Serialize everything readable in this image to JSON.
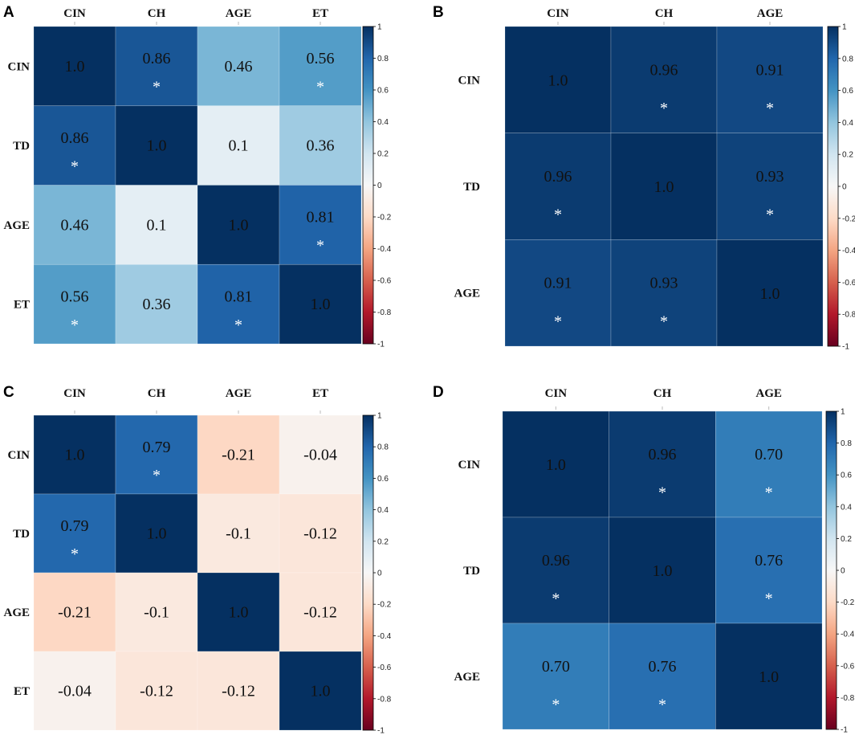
{
  "colorscale": {
    "neg": "#67001f",
    "mid": "#f7f7f7",
    "pos": "#053061"
  },
  "chart_data": [
    {
      "panel": "A",
      "type": "heatmap",
      "columns": [
        "CIN",
        "CH",
        "AGE",
        "ET"
      ],
      "rows": [
        "CIN",
        "TD",
        "AGE",
        "ET"
      ],
      "values": [
        [
          1.0,
          0.86,
          0.46,
          0.56
        ],
        [
          0.86,
          1.0,
          0.1,
          0.36
        ],
        [
          0.46,
          0.1,
          1.0,
          0.81
        ],
        [
          0.56,
          0.36,
          0.81,
          1.0
        ]
      ],
      "labels": [
        [
          "1.0",
          "0.86",
          "0.46",
          "0.56"
        ],
        [
          "0.86",
          "1.0",
          "0.1",
          "0.36"
        ],
        [
          "0.46",
          "0.1",
          "1.0",
          "0.81"
        ],
        [
          "0.56",
          "0.36",
          "0.81",
          "1.0"
        ]
      ],
      "significant": [
        [
          false,
          true,
          false,
          true
        ],
        [
          true,
          false,
          false,
          false
        ],
        [
          false,
          false,
          false,
          true
        ],
        [
          true,
          false,
          true,
          false
        ]
      ],
      "colorbar": {
        "ticks": [
          "1",
          "0.8",
          "0.6",
          "0.4",
          "0.2",
          "0",
          "-0.2",
          "-0.4",
          "-0.6",
          "-0.8",
          "-1"
        ],
        "range": [
          -1,
          1
        ]
      }
    },
    {
      "panel": "B",
      "type": "heatmap",
      "columns": [
        "CIN",
        "CH",
        "AGE"
      ],
      "rows": [
        "CIN",
        "TD",
        "AGE"
      ],
      "values": [
        [
          1.0,
          0.96,
          0.91
        ],
        [
          0.96,
          1.0,
          0.93
        ],
        [
          0.91,
          0.93,
          1.0
        ]
      ],
      "labels": [
        [
          "1.0",
          "0.96",
          "0.91"
        ],
        [
          "0.96",
          "1.0",
          "0.93"
        ],
        [
          "0.91",
          "0.93",
          "1.0"
        ]
      ],
      "significant": [
        [
          false,
          true,
          true
        ],
        [
          true,
          false,
          true
        ],
        [
          true,
          true,
          false
        ]
      ],
      "colorbar": {
        "ticks": [
          "1",
          "0.8",
          "0.6",
          "0.4",
          "0.2",
          "0",
          "-0.2",
          "-0.4",
          "-0.6",
          "-0.8",
          "-1"
        ],
        "range": [
          -1,
          1
        ]
      }
    },
    {
      "panel": "C",
      "type": "heatmap",
      "columns": [
        "CIN",
        "CH",
        "AGE",
        "ET"
      ],
      "rows": [
        "CIN",
        "TD",
        "AGE",
        "ET"
      ],
      "values": [
        [
          1.0,
          0.79,
          -0.21,
          -0.04
        ],
        [
          0.79,
          1.0,
          -0.1,
          -0.12
        ],
        [
          -0.21,
          -0.1,
          1.0,
          -0.12
        ],
        [
          -0.04,
          -0.12,
          -0.12,
          1.0
        ]
      ],
      "labels": [
        [
          "1.0",
          "0.79",
          "-0.21",
          "-0.04"
        ],
        [
          "0.79",
          "1.0",
          "-0.1",
          "-0.12"
        ],
        [
          "-0.21",
          "-0.1",
          "1.0",
          "-0.12"
        ],
        [
          "-0.04",
          "-0.12",
          "-0.12",
          "1.0"
        ]
      ],
      "significant": [
        [
          false,
          true,
          false,
          false
        ],
        [
          true,
          false,
          false,
          false
        ],
        [
          false,
          false,
          false,
          false
        ],
        [
          false,
          false,
          false,
          false
        ]
      ],
      "colorbar": {
        "ticks": [
          "1",
          "0.8",
          "0.6",
          "0.4",
          "0.2",
          "0",
          "-0.2",
          "-0.4",
          "-0.6",
          "-0.8",
          "-1"
        ],
        "range": [
          -1,
          1
        ]
      }
    },
    {
      "panel": "D",
      "type": "heatmap",
      "columns": [
        "CIN",
        "CH",
        "AGE"
      ],
      "rows": [
        "CIN",
        "TD",
        "AGE"
      ],
      "values": [
        [
          1.0,
          0.96,
          0.7
        ],
        [
          0.96,
          1.0,
          0.76
        ],
        [
          0.7,
          0.76,
          1.0
        ]
      ],
      "labels": [
        [
          "1.0",
          "0.96",
          "0.70"
        ],
        [
          "0.96",
          "1.0",
          "0.76"
        ],
        [
          "0.70",
          "0.76",
          "1.0"
        ]
      ],
      "significant": [
        [
          false,
          true,
          true
        ],
        [
          true,
          false,
          true
        ],
        [
          true,
          true,
          false
        ]
      ],
      "colorbar": {
        "ticks": [
          "1",
          "0.8",
          "0.6",
          "0.4",
          "0.2",
          "0",
          "-0.2",
          "-0.4",
          "-0.6",
          "-0.8",
          "-1"
        ],
        "range": [
          -1,
          1
        ]
      }
    }
  ]
}
